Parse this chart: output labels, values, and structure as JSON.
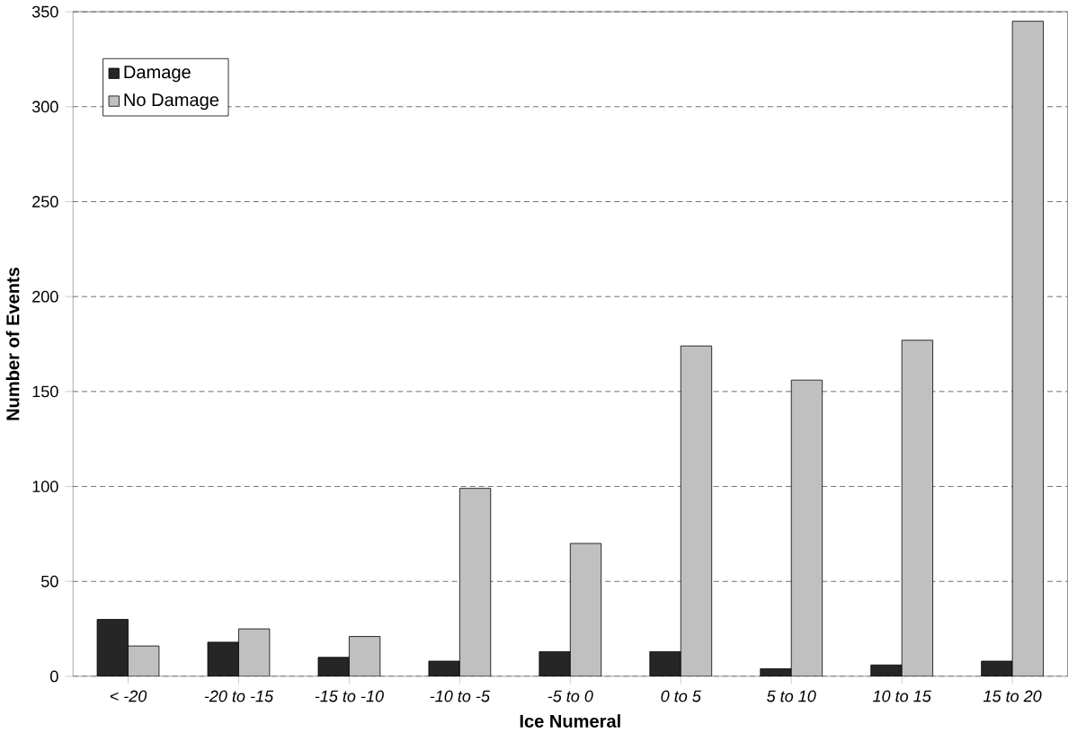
{
  "chart_data": {
    "type": "bar",
    "xlabel": "Ice Numeral",
    "ylabel": "Number of Events",
    "categories": [
      "< -20",
      "-20 to -15",
      "-15 to -10",
      "-10 to -5",
      "-5 to 0",
      "0 to 5",
      "5 to 10",
      "10 to 15",
      "15 to 20"
    ],
    "series": [
      {
        "name": "Damage",
        "color": "#262626",
        "values": [
          30,
          18,
          10,
          8,
          13,
          13,
          4,
          6,
          8
        ]
      },
      {
        "name": "No Damage",
        "color": "#c0c0c0",
        "values": [
          16,
          25,
          21,
          99,
          70,
          174,
          156,
          177,
          345
        ]
      }
    ],
    "ylim": [
      0,
      350
    ],
    "yticks": [
      0,
      50,
      100,
      150,
      200,
      250,
      300,
      350
    ],
    "grid": "y",
    "legend": "top left"
  }
}
